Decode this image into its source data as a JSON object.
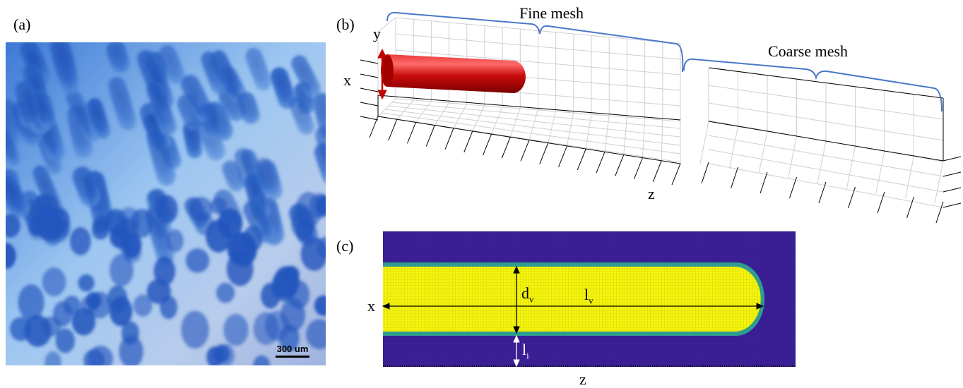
{
  "panels": {
    "a": {
      "label": "(a)",
      "scale_bar": "300 um"
    },
    "b": {
      "label": "(b)",
      "fine_label": "Fine mesh",
      "coarse_label": "Coarse mesh",
      "axis_x": "x",
      "axis_y": "y",
      "axis_z": "z"
    },
    "c": {
      "label": "(c)",
      "axis_x": "x",
      "axis_z": "z",
      "dim_diameter": "d",
      "dim_diameter_sub": "v",
      "dim_length": "l",
      "dim_length_sub": "v",
      "dim_interval": "l",
      "dim_interval_sub": "i"
    }
  },
  "colors": {
    "micro_bg": "#6aa6e6",
    "villus": "#2a5fbe",
    "villus_dark": "#173f9c",
    "mesh_brace": "#4a78c8",
    "cylinder": "#c40a0a",
    "cylinder_hi": "#ff5a5a",
    "arrow_red": "#c00000",
    "field_bg": "#3a1f96",
    "field_fg": "#f4f40c",
    "field_edge": "#2e9d8f"
  }
}
